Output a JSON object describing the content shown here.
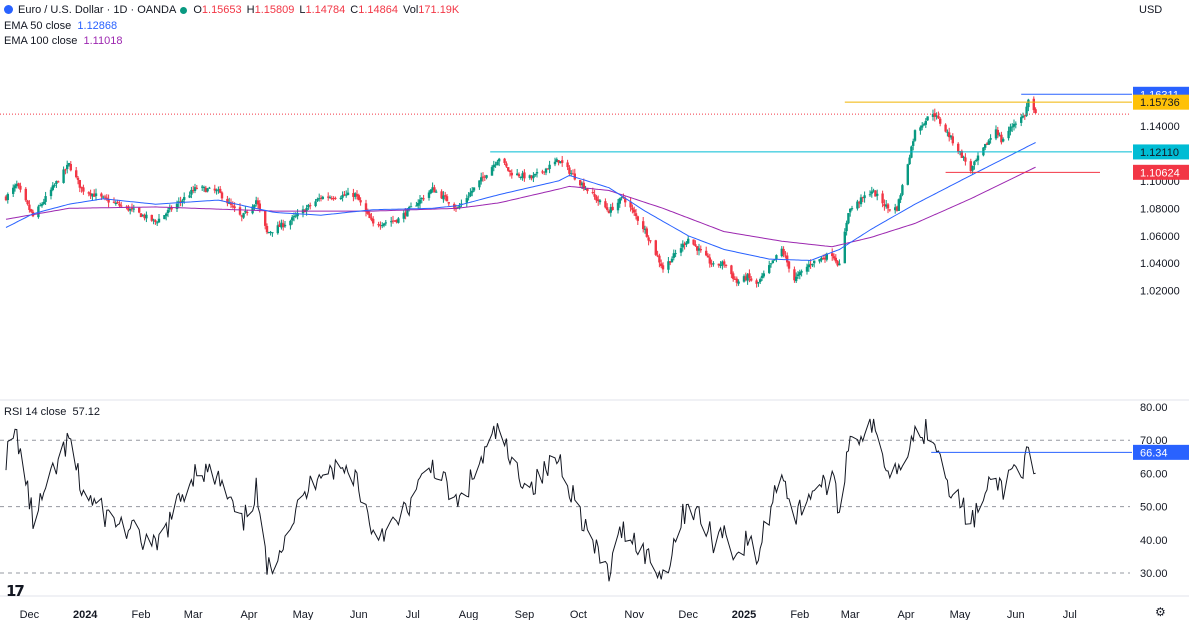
{
  "header": {
    "symbol_title": "Euro / U.S. Dollar · 1D · OANDA",
    "open_label": "O",
    "open": "1.15653",
    "high_label": "H",
    "high": "1.15809",
    "low_label": "L",
    "low": "1.14784",
    "close_label": "C",
    "close": "1.14864",
    "vol_label": "Vol",
    "vol": "171.19K",
    "ema50_label": "EMA 50 close",
    "ema50_value": "1.12868",
    "ema100_label": "EMA 100 close",
    "ema100_value": "1.11018",
    "rsi_label": "RSI 14 close",
    "rsi_value": "57.12",
    "currency": "USD"
  },
  "colors": {
    "up": "#089981",
    "down": "#f23645",
    "ema50": "#2962ff",
    "ema100": "#9c27b0",
    "resistance": "#f0b400",
    "support": "#00bcd4",
    "high_line": "#2962ff",
    "low_line": "#f23645",
    "rsi_line": "#131722",
    "grid": "#e0e3eb"
  },
  "chart_data": [
    {
      "type": "candlestick",
      "title": "Euro / U.S. Dollar · 1D · OANDA",
      "ylim": [
        1.0148,
        1.168
      ],
      "y_ticks": [
        "1.02000",
        "1.04000",
        "1.06000",
        "1.08000",
        "1.10000",
        "1.12000",
        "1.14000"
      ],
      "x_ticks": [
        "Dec",
        "2024",
        "Feb",
        "Mar",
        "Apr",
        "May",
        "Jun",
        "Jul",
        "Aug",
        "Sep",
        "Oct",
        "Nov",
        "Dec",
        "2025",
        "Feb",
        "Mar",
        "Apr",
        "May",
        "Jun",
        "Jul"
      ],
      "anchors": [
        [
          "2023-11-23",
          1.088
        ],
        [
          "2023-11-29",
          1.097
        ],
        [
          "2023-12-08",
          1.074
        ],
        [
          "2023-12-28",
          1.112
        ],
        [
          "2024-01-04",
          1.094
        ],
        [
          "2024-01-16",
          1.087
        ],
        [
          "2024-02-02",
          1.078
        ],
        [
          "2024-02-14",
          1.07
        ],
        [
          "2024-03-08",
          1.095
        ],
        [
          "2024-03-20",
          1.092
        ],
        [
          "2024-04-02",
          1.073
        ],
        [
          "2024-04-10",
          1.086
        ],
        [
          "2024-04-16",
          1.062
        ],
        [
          "2024-04-29",
          1.071
        ],
        [
          "2024-05-16",
          1.088
        ],
        [
          "2024-06-04",
          1.09
        ],
        [
          "2024-06-14",
          1.068
        ],
        [
          "2024-06-28",
          1.072
        ],
        [
          "2024-07-17",
          1.094
        ],
        [
          "2024-07-31",
          1.08
        ],
        [
          "2024-08-23",
          1.117
        ],
        [
          "2024-08-29",
          1.106
        ],
        [
          "2024-09-10",
          1.102
        ],
        [
          "2024-09-25",
          1.115
        ],
        [
          "2024-10-15",
          1.088
        ],
        [
          "2024-10-23",
          1.078
        ],
        [
          "2024-10-31",
          1.088
        ],
        [
          "2024-11-12",
          1.064
        ],
        [
          "2024-11-22",
          1.036
        ],
        [
          "2024-12-06",
          1.058
        ],
        [
          "2024-12-20",
          1.038
        ],
        [
          "2024-12-26",
          1.04
        ],
        [
          "2025-01-02",
          1.026
        ],
        [
          "2025-01-08",
          1.03
        ],
        [
          "2025-01-13",
          1.024
        ],
        [
          "2025-01-27",
          1.05
        ],
        [
          "2025-02-03",
          1.028
        ],
        [
          "2025-02-12",
          1.04
        ],
        [
          "2025-02-24",
          1.047
        ],
        [
          "2025-02-28",
          1.038
        ],
        [
          "2025-03-05",
          1.078
        ],
        [
          "2025-03-18",
          1.093
        ],
        [
          "2025-03-27",
          1.08
        ],
        [
          "2025-04-01",
          1.08
        ],
        [
          "2025-04-04",
          1.096
        ],
        [
          "2025-04-11",
          1.136
        ],
        [
          "2025-04-21",
          1.15
        ],
        [
          "2025-04-30",
          1.133
        ],
        [
          "2025-05-12",
          1.108
        ],
        [
          "2025-05-26",
          1.138
        ],
        [
          "2025-05-29",
          1.129
        ],
        [
          "2025-06-05",
          1.142
        ],
        [
          "2025-06-11",
          1.148
        ],
        [
          "2025-06-13",
          1.159
        ],
        [
          "2025-06-17",
          1.148
        ]
      ],
      "ema50_anchors": [
        [
          "2023-11-23",
          1.066
        ],
        [
          "2023-12-08",
          1.076
        ],
        [
          "2023-12-28",
          1.083
        ],
        [
          "2024-01-16",
          1.087
        ],
        [
          "2024-02-14",
          1.083
        ],
        [
          "2024-03-20",
          1.086
        ],
        [
          "2024-04-20",
          1.077
        ],
        [
          "2024-05-16",
          1.075
        ],
        [
          "2024-06-14",
          1.079
        ],
        [
          "2024-07-17",
          1.08
        ],
        [
          "2024-07-31",
          1.082
        ],
        [
          "2024-08-23",
          1.09
        ],
        [
          "2024-09-25",
          1.1
        ],
        [
          "2024-10-01",
          1.104
        ],
        [
          "2024-10-23",
          1.095
        ],
        [
          "2024-11-12",
          1.078
        ],
        [
          "2024-12-06",
          1.06
        ],
        [
          "2024-12-26",
          1.05
        ],
        [
          "2025-01-20",
          1.043
        ],
        [
          "2025-02-12",
          1.042
        ],
        [
          "2025-02-28",
          1.05
        ],
        [
          "2025-03-18",
          1.065
        ],
        [
          "2025-04-11",
          1.083
        ],
        [
          "2025-05-12",
          1.104
        ],
        [
          "2025-06-17",
          1.128
        ]
      ],
      "ema100_anchors": [
        [
          "2023-11-23",
          1.072
        ],
        [
          "2023-12-28",
          1.08
        ],
        [
          "2024-02-14",
          1.081
        ],
        [
          "2024-04-20",
          1.078
        ],
        [
          "2024-06-14",
          1.078
        ],
        [
          "2024-07-31",
          1.08
        ],
        [
          "2024-08-23",
          1.084
        ],
        [
          "2024-09-25",
          1.094
        ],
        [
          "2024-10-01",
          1.096
        ],
        [
          "2024-10-23",
          1.093
        ],
        [
          "2024-11-22",
          1.08
        ],
        [
          "2024-12-26",
          1.063
        ],
        [
          "2025-01-27",
          1.056
        ],
        [
          "2025-02-24",
          1.052
        ],
        [
          "2025-03-18",
          1.059
        ],
        [
          "2025-04-11",
          1.069
        ],
        [
          "2025-05-12",
          1.087
        ],
        [
          "2025-06-17",
          1.11
        ]
      ],
      "horizontal_levels": [
        {
          "value": 1.16311,
          "label": "1.16311",
          "style": "high",
          "from": "2025-06-09"
        },
        {
          "value": 1.15736,
          "label": "1.15736",
          "style": "resistance",
          "from": "2025-03-03"
        },
        {
          "value": 1.14864,
          "label": "",
          "style": "last",
          "from": "2023-11-23"
        },
        {
          "value": 1.1211,
          "label": "1.12110",
          "style": "support",
          "from": "2024-08-18"
        },
        {
          "value": 1.10624,
          "label": "1.10624",
          "style": "low",
          "from": "2025-04-28"
        }
      ]
    },
    {
      "type": "line",
      "title": "RSI 14 close",
      "ylim": [
        26.5,
        82
      ],
      "y_ticks": [
        "30.00",
        "40.00",
        "50.00",
        "60.00",
        "70.00",
        "80.00"
      ],
      "guides": [
        70,
        50,
        30
      ],
      "anchors": [
        [
          "2023-11-23",
          65
        ],
        [
          "2023-11-29",
          72
        ],
        [
          "2023-12-08",
          46
        ],
        [
          "2023-12-28",
          70
        ],
        [
          "2024-01-04",
          55
        ],
        [
          "2024-01-16",
          48
        ],
        [
          "2024-02-02",
          42
        ],
        [
          "2024-02-14",
          37
        ],
        [
          "2024-03-08",
          62
        ],
        [
          "2024-03-20",
          58
        ],
        [
          "2024-04-02",
          44
        ],
        [
          "2024-04-10",
          55
        ],
        [
          "2024-04-16",
          30
        ],
        [
          "2024-04-29",
          45
        ],
        [
          "2024-05-16",
          62
        ],
        [
          "2024-06-04",
          60
        ],
        [
          "2024-06-14",
          42
        ],
        [
          "2024-06-28",
          45
        ],
        [
          "2024-07-17",
          63
        ],
        [
          "2024-07-31",
          50
        ],
        [
          "2024-08-23",
          74
        ],
        [
          "2024-08-29",
          63
        ],
        [
          "2024-09-10",
          56
        ],
        [
          "2024-09-25",
          65
        ],
        [
          "2024-10-15",
          37
        ],
        [
          "2024-10-23",
          30
        ],
        [
          "2024-10-31",
          44
        ],
        [
          "2024-11-12",
          36
        ],
        [
          "2024-11-22",
          29
        ],
        [
          "2024-12-06",
          52
        ],
        [
          "2024-12-20",
          40
        ],
        [
          "2024-12-26",
          43
        ],
        [
          "2025-01-02",
          35
        ],
        [
          "2025-01-08",
          40
        ],
        [
          "2025-01-13",
          34
        ],
        [
          "2025-01-27",
          62
        ],
        [
          "2025-02-03",
          46
        ],
        [
          "2025-02-12",
          55
        ],
        [
          "2025-02-24",
          58
        ],
        [
          "2025-02-28",
          48
        ],
        [
          "2025-03-05",
          70
        ],
        [
          "2025-03-18",
          74
        ],
        [
          "2025-03-27",
          62
        ],
        [
          "2025-04-01",
          61
        ],
        [
          "2025-04-04",
          66
        ],
        [
          "2025-04-11",
          72
        ],
        [
          "2025-04-21",
          73
        ],
        [
          "2025-04-30",
          57
        ],
        [
          "2025-05-12",
          45
        ],
        [
          "2025-05-26",
          59
        ],
        [
          "2025-05-29",
          55
        ],
        [
          "2025-06-05",
          62
        ],
        [
          "2025-06-11",
          62
        ],
        [
          "2025-06-13",
          66
        ],
        [
          "2025-06-17",
          57
        ]
      ],
      "marked_level": {
        "value": 66.34,
        "label": "66.34",
        "from": "2025-04-20"
      }
    }
  ]
}
